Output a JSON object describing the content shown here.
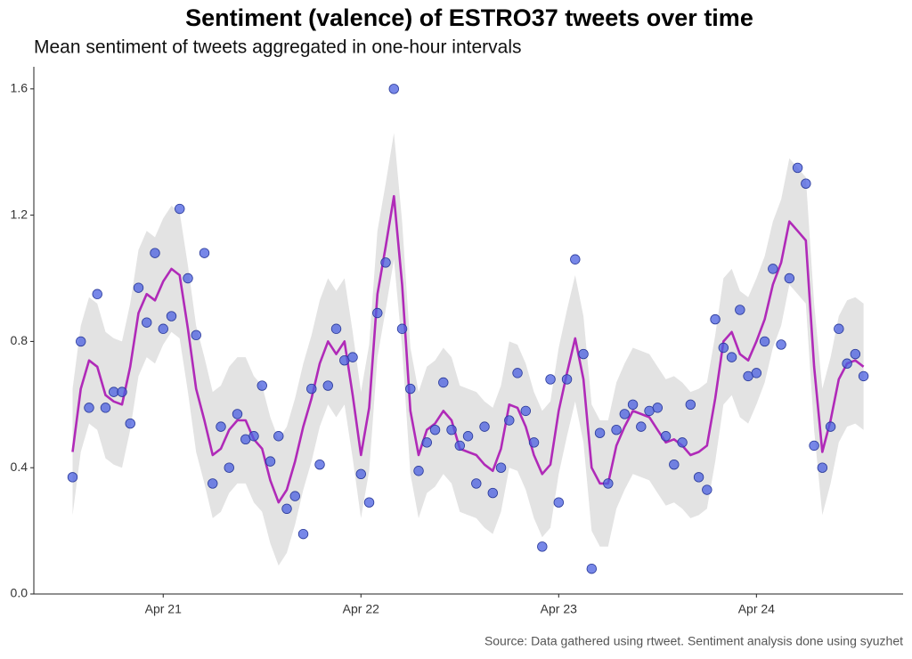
{
  "chart_data": {
    "type": "scatter",
    "title": "Sentiment (valence) of ESTRO37 tweets over time",
    "subtitle": "Mean sentiment of tweets aggregated in one-hour intervals",
    "caption": "Source: Data gathered using rtweet. Sentiment analysis done using syuzhet",
    "x": [
      -11,
      -10,
      -9,
      -8,
      -7,
      -6,
      -5,
      -4,
      -3,
      -2,
      -1,
      0,
      1,
      2,
      3,
      4,
      5,
      6,
      7,
      8,
      9,
      10,
      11,
      12,
      13,
      14,
      15,
      16,
      17,
      18,
      19,
      20,
      21,
      22,
      23,
      24,
      25,
      26,
      27,
      28,
      29,
      30,
      31,
      32,
      33,
      34,
      35,
      36,
      37,
      38,
      39,
      40,
      41,
      42,
      43,
      44,
      45,
      46,
      47,
      48,
      49,
      50,
      51,
      52,
      53,
      54,
      55,
      56,
      57,
      58,
      59,
      60,
      61,
      62,
      63,
      64,
      65,
      66,
      67,
      68,
      69,
      70,
      71,
      72,
      73,
      74,
      75,
      76,
      77,
      78,
      79,
      80,
      81,
      82,
      83,
      84,
      85
    ],
    "values": [
      0.37,
      0.8,
      0.59,
      0.95,
      0.59,
      0.64,
      0.64,
      0.54,
      0.97,
      0.86,
      1.08,
      0.84,
      0.88,
      1.22,
      1.0,
      0.82,
      1.08,
      0.35,
      0.53,
      0.4,
      0.57,
      0.49,
      0.5,
      0.66,
      0.42,
      0.5,
      0.27,
      0.31,
      0.19,
      0.65,
      0.41,
      0.66,
      0.84,
      0.74,
      0.75,
      0.38,
      0.29,
      0.89,
      1.05,
      1.6,
      0.84,
      0.65,
      0.39,
      0.48,
      0.52,
      0.67,
      0.52,
      0.47,
      0.5,
      0.35,
      0.53,
      0.32,
      0.4,
      0.55,
      0.7,
      0.58,
      0.48,
      0.15,
      0.68,
      0.29,
      0.68,
      1.06,
      0.76,
      0.08,
      0.51,
      0.35,
      0.52,
      0.57,
      0.6,
      0.53,
      0.58,
      0.59,
      0.5,
      0.41,
      0.48,
      0.6,
      0.37,
      0.33,
      0.87,
      0.78,
      0.75,
      0.9,
      0.69,
      0.7,
      0.8,
      1.03,
      0.79,
      1.0,
      1.35,
      1.3,
      0.47,
      0.4,
      0.53,
      0.84,
      0.73,
      0.76,
      0.69
    ],
    "color": "#4a5fe0",
    "smooth": {
      "color": "#b02ab8",
      "values": [
        0.45,
        0.65,
        0.74,
        0.72,
        0.63,
        0.61,
        0.6,
        0.72,
        0.89,
        0.95,
        0.93,
        0.99,
        1.03,
        1.01,
        0.84,
        0.65,
        0.55,
        0.44,
        0.46,
        0.52,
        0.55,
        0.55,
        0.49,
        0.46,
        0.36,
        0.29,
        0.33,
        0.42,
        0.53,
        0.62,
        0.73,
        0.8,
        0.76,
        0.8,
        0.63,
        0.44,
        0.59,
        0.95,
        1.1,
        1.26,
        0.98,
        0.58,
        0.44,
        0.52,
        0.54,
        0.58,
        0.55,
        0.46,
        0.45,
        0.44,
        0.41,
        0.39,
        0.46,
        0.6,
        0.59,
        0.53,
        0.44,
        0.38,
        0.41,
        0.58,
        0.7,
        0.81,
        0.68,
        0.4,
        0.35,
        0.35,
        0.47,
        0.53,
        0.58,
        0.57,
        0.56,
        0.52,
        0.48,
        0.49,
        0.47,
        0.44,
        0.45,
        0.47,
        0.62,
        0.8,
        0.83,
        0.76,
        0.74,
        0.8,
        0.87,
        0.98,
        1.05,
        1.18,
        1.15,
        1.12,
        0.72,
        0.45,
        0.55,
        0.68,
        0.73,
        0.74,
        0.72
      ]
    },
    "band": {
      "color": "#e3e3e3",
      "lower": [
        0.25,
        0.45,
        0.54,
        0.52,
        0.43,
        0.41,
        0.4,
        0.52,
        0.69,
        0.75,
        0.73,
        0.79,
        0.83,
        0.81,
        0.64,
        0.45,
        0.35,
        0.24,
        0.26,
        0.32,
        0.35,
        0.35,
        0.29,
        0.26,
        0.16,
        0.09,
        0.13,
        0.22,
        0.33,
        0.42,
        0.53,
        0.6,
        0.56,
        0.6,
        0.43,
        0.24,
        0.39,
        0.75,
        0.9,
        1.06,
        0.78,
        0.38,
        0.24,
        0.32,
        0.34,
        0.38,
        0.35,
        0.26,
        0.25,
        0.24,
        0.21,
        0.19,
        0.26,
        0.4,
        0.39,
        0.33,
        0.24,
        0.18,
        0.21,
        0.38,
        0.5,
        0.61,
        0.48,
        0.2,
        0.15,
        0.15,
        0.27,
        0.33,
        0.38,
        0.37,
        0.36,
        0.32,
        0.28,
        0.29,
        0.27,
        0.24,
        0.25,
        0.27,
        0.42,
        0.6,
        0.63,
        0.56,
        0.54,
        0.6,
        0.67,
        0.78,
        0.85,
        0.98,
        0.95,
        0.92,
        0.52,
        0.25,
        0.35,
        0.48,
        0.53,
        0.54,
        0.52
      ],
      "upper": [
        0.65,
        0.85,
        0.94,
        0.92,
        0.83,
        0.81,
        0.8,
        0.92,
        1.09,
        1.15,
        1.13,
        1.19,
        1.23,
        1.21,
        1.04,
        0.85,
        0.75,
        0.64,
        0.66,
        0.72,
        0.75,
        0.75,
        0.69,
        0.66,
        0.56,
        0.49,
        0.53,
        0.62,
        0.73,
        0.82,
        0.93,
        1.0,
        0.96,
        1.0,
        0.83,
        0.64,
        0.79,
        1.15,
        1.3,
        1.46,
        1.18,
        0.78,
        0.64,
        0.72,
        0.74,
        0.78,
        0.75,
        0.66,
        0.65,
        0.64,
        0.61,
        0.59,
        0.66,
        0.8,
        0.79,
        0.73,
        0.64,
        0.58,
        0.61,
        0.78,
        0.9,
        1.01,
        0.88,
        0.6,
        0.55,
        0.55,
        0.67,
        0.73,
        0.78,
        0.77,
        0.76,
        0.72,
        0.68,
        0.69,
        0.67,
        0.64,
        0.65,
        0.67,
        0.82,
        1.0,
        1.03,
        0.96,
        0.94,
        1.0,
        1.07,
        1.18,
        1.25,
        1.38,
        1.35,
        1.32,
        0.92,
        0.65,
        0.75,
        0.88,
        0.93,
        0.94,
        0.92
      ]
    },
    "xlim": [
      -15.7,
      89.8
    ],
    "xticks": [
      {
        "value": 0,
        "label": "Apr 21"
      },
      {
        "value": 24,
        "label": "Apr 22"
      },
      {
        "value": 48,
        "label": "Apr 23"
      },
      {
        "value": 72,
        "label": "Apr 24"
      }
    ],
    "ylim": [
      0,
      1.67
    ],
    "yticks": [
      {
        "value": 0,
        "label": "0.0"
      },
      0.4,
      0.8,
      1.2,
      1.6
    ],
    "grid": false
  }
}
